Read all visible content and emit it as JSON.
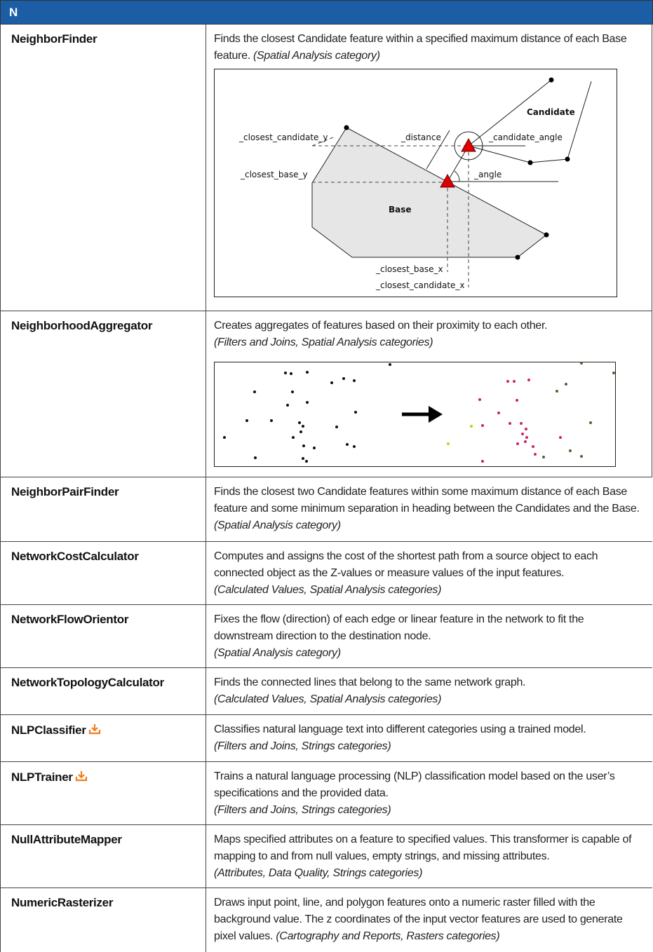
{
  "header": "N",
  "rows": [
    {
      "name": "NeighborFinder",
      "description": "Finds the closest Candidate feature within a specified maximum distance of each Base feature.",
      "category": "(Spatial Analysis category)",
      "figure_labels": [
        "_closest_candidate_y",
        "_distance",
        "_candidate_angle",
        "Candidate",
        "_closest_base_y",
        "_angle",
        "Base",
        "_closest_base_x",
        "_closest_candidate_x"
      ]
    },
    {
      "name": "NeighborhoodAggregator",
      "description": "Creates aggregates of features based on their proximity to each other.",
      "category": "(Filters and Joins, Spatial Analysis categories)"
    },
    {
      "name": "NeighborPairFinder",
      "description": "Finds the closest two Candidate features within some maximum distance of each Base feature and some minimum separation in heading between the Candidates and the Base.",
      "category": "(Spatial Analysis category)"
    },
    {
      "name": "NetworkCostCalculator",
      "description": "Computes and assigns the cost of the shortest path from a source object to each connected object as the Z-values or measure values of the input features.",
      "category": "(Calculated Values, Spatial Analysis categories)"
    },
    {
      "name": "NetworkFlowOrientor",
      "description": "Fixes the flow (direction) of each edge or linear feature in the network to fit the downstream direction to the destination node.",
      "category": "(Spatial Analysis category)"
    },
    {
      "name": "NetworkTopologyCalculator",
      "description": "Finds the connected lines that belong to the same network graph.",
      "category": "(Calculated Values, Spatial Analysis categories)"
    },
    {
      "name": "NLPClassifier",
      "description": "Classifies natural language text into different categories using a trained model.",
      "category": "(Filters and Joins, Strings categories)"
    },
    {
      "name": "NLPTrainer",
      "description": "Trains a natural language processing (NLP) classification model based on the user’s specifications and the provided data.",
      "category": "(Filters and Joins, Strings categories)"
    },
    {
      "name": "NullAttributeMapper",
      "description": "Maps specified attributes on a feature to specified values. This transformer is capable of mapping to and from null values, empty strings, and missing attributes.",
      "category": "(Attributes, Data Quality, Strings categories)"
    },
    {
      "name": "NumericRasterizer",
      "description": "Draws input point, line, and polygon features onto a numeric raster filled with the background value. The z coordinates of the input vector features are used to generate pixel values.",
      "category": "(Cartography and Reports, Rasters categories)"
    }
  ]
}
